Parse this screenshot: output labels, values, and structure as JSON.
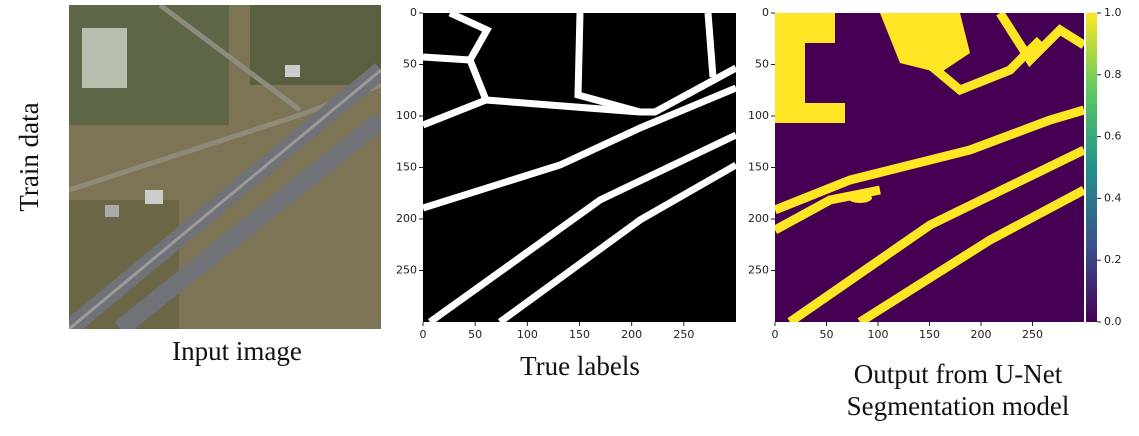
{
  "row_label": "Train data",
  "panels": [
    {
      "caption": [
        "Input image"
      ]
    },
    {
      "caption": [
        "True labels"
      ],
      "xlim": [
        0,
        300
      ],
      "ylim": [
        0,
        300
      ],
      "xticks": [
        0,
        50,
        100,
        150,
        200,
        250
      ],
      "yticks": [
        0,
        50,
        100,
        150,
        200,
        250
      ]
    },
    {
      "caption": [
        "Output from U-Net",
        "Segmentation model"
      ],
      "xlim": [
        0,
        300
      ],
      "ylim": [
        0,
        300
      ],
      "xticks": [
        0,
        50,
        100,
        150,
        200,
        250
      ],
      "yticks": [
        0,
        50,
        100,
        150,
        200,
        250
      ],
      "colorbar": {
        "lim": [
          0,
          1
        ],
        "ticks": [
          {
            "value": 0,
            "label": "0.0"
          },
          {
            "value": 0.2,
            "label": "0.2"
          },
          {
            "value": 0.4,
            "label": "0.4"
          },
          {
            "value": 0.6,
            "label": "0.6"
          },
          {
            "value": 0.8,
            "label": "0.8"
          },
          {
            "value": 1,
            "label": "1.0"
          }
        ]
      }
    }
  ]
}
